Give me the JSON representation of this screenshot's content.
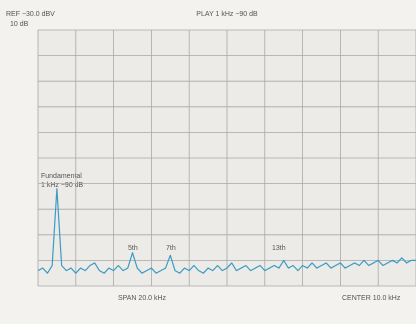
{
  "chart_data": {
    "type": "line",
    "title": "PLAY 1 kHz −90 dB",
    "ref_label": "REF −30.0 dBV",
    "scale_label": "10 dB",
    "span_label": "SPAN 20.0 kHz",
    "center_label": "CENTER 10.0 kHz",
    "annotations": [
      "Fundamental",
      "1 kHz −90 dB",
      "5th",
      "7th",
      "13th"
    ],
    "x": [
      0,
      0.25,
      0.5,
      0.75,
      1,
      1.25,
      1.5,
      1.75,
      2,
      2.25,
      2.5,
      2.75,
      3,
      3.25,
      3.5,
      3.75,
      4,
      4.25,
      4.5,
      4.75,
      5,
      5.25,
      5.5,
      5.75,
      6,
      6.25,
      6.5,
      6.75,
      7,
      7.25,
      7.5,
      7.75,
      8,
      8.25,
      8.5,
      8.75,
      9,
      9.25,
      9.5,
      9.75,
      10,
      10.25,
      10.5,
      10.75,
      11,
      11.25,
      11.5,
      11.75,
      12,
      12.25,
      12.5,
      12.75,
      13,
      13.25,
      13.5,
      13.75,
      14,
      14.25,
      14.5,
      14.75,
      15,
      15.25,
      15.5,
      15.75,
      16,
      16.25,
      16.5,
      16.75,
      17,
      17.25,
      17.5,
      17.75,
      18,
      18.25,
      18.5,
      18.75,
      19,
      19.25,
      19.5,
      19.75,
      20
    ],
    "values": [
      -124,
      -123,
      -125,
      -122,
      -92,
      -122,
      -124,
      -123,
      -125,
      -123,
      -124,
      -122,
      -121,
      -124,
      -125,
      -123,
      -124,
      -122,
      -124,
      -123,
      -117,
      -123,
      -125,
      -124,
      -123,
      -125,
      -124,
      -123,
      -118,
      -124,
      -125,
      -123,
      -124,
      -122,
      -124,
      -125,
      -123,
      -124,
      -122,
      -124,
      -123,
      -121,
      -124,
      -123,
      -122,
      -124,
      -123,
      -122,
      -124,
      -123,
      -122,
      -123,
      -120,
      -123,
      -122,
      -124,
      -122,
      -123,
      -121,
      -123,
      -122,
      -121,
      -123,
      -122,
      -121,
      -123,
      -122,
      -121,
      -122,
      -120,
      -122,
      -121,
      -120,
      -122,
      -121,
      -120,
      -121,
      -119,
      -121,
      -120,
      -120
    ],
    "color": "#3a9cc6",
    "xlim": [
      0,
      20
    ],
    "ylim": [
      -130,
      -30
    ],
    "xticks": [
      0,
      2,
      4,
      6,
      8,
      10,
      12,
      14,
      16,
      18,
      20
    ],
    "yticks": [
      -130,
      -120,
      -110,
      -100,
      -90,
      -80,
      -70,
      -60,
      -50,
      -40,
      -30
    ],
    "grid": true
  }
}
